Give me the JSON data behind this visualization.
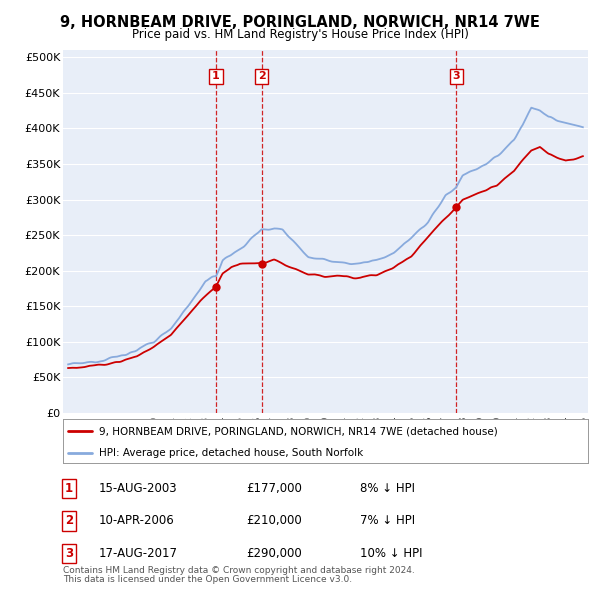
{
  "title": "9, HORNBEAM DRIVE, PORINGLAND, NORWICH, NR14 7WE",
  "subtitle": "Price paid vs. HM Land Registry's House Price Index (HPI)",
  "ylabel_ticks": [
    "£0",
    "£50K",
    "£100K",
    "£150K",
    "£200K",
    "£250K",
    "£300K",
    "£350K",
    "£400K",
    "£450K",
    "£500K"
  ],
  "ytick_vals": [
    0,
    50000,
    100000,
    150000,
    200000,
    250000,
    300000,
    350000,
    400000,
    450000,
    500000
  ],
  "xlim_start": 1994.7,
  "xlim_end": 2025.3,
  "ylim_top": 510000,
  "sale_dates": [
    2003.62,
    2006.27,
    2017.62
  ],
  "sale_prices": [
    177000,
    210000,
    290000
  ],
  "sale_labels": [
    "1",
    "2",
    "3"
  ],
  "legend_red": "9, HORNBEAM DRIVE, PORINGLAND, NORWICH, NR14 7WE (detached house)",
  "legend_blue": "HPI: Average price, detached house, South Norfolk",
  "transactions": [
    {
      "label": "1",
      "date": "15-AUG-2003",
      "price": "£177,000",
      "hpi": "8% ↓ HPI"
    },
    {
      "label": "2",
      "date": "10-APR-2006",
      "price": "£210,000",
      "hpi": "7% ↓ HPI"
    },
    {
      "label": "3",
      "date": "17-AUG-2017",
      "price": "£290,000",
      "hpi": "10% ↓ HPI"
    }
  ],
  "footnote1": "Contains HM Land Registry data © Crown copyright and database right 2024.",
  "footnote2": "This data is licensed under the Open Government Licence v3.0.",
  "color_red": "#cc0000",
  "color_blue": "#88aadd",
  "color_vline": "#cc0000",
  "background_chart": "#e8eef8",
  "grid_color": "#ffffff"
}
